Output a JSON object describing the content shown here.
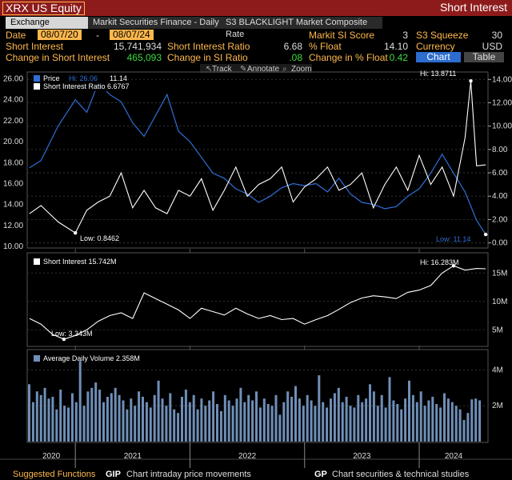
{
  "header": {
    "ticker": "XRX US Equity",
    "function_name": "Short Interest"
  },
  "tabs": [
    {
      "label": "Exchange Reported",
      "active": true
    },
    {
      "label": "Markit Securities Finance - Daily",
      "active": false
    },
    {
      "label": "S3 BLACKLIGHT Market Composite Rate",
      "active": false
    }
  ],
  "fields": {
    "date_label": "Date",
    "date_start": "08/07/20",
    "date_sep": "-",
    "date_end": "08/07/24",
    "markit_si_score_label": "Markit SI Score",
    "markit_si_score": "3",
    "s3_squeeze_label": "S3 Squeeze",
    "s3_squeeze": "30",
    "short_interest_label": "Short Interest",
    "short_interest": "15,741,934",
    "si_ratio_label": "Short Interest Ratio",
    "si_ratio": "6.68",
    "pct_float_label": "% Float",
    "pct_float": "14.10",
    "currency_label": "Currency",
    "currency": "USD",
    "chg_si_label": "Change in Short Interest",
    "chg_si": "465,093",
    "chg_si_ratio_label": "Change in SI Ratio",
    "chg_si_ratio": ".08",
    "chg_pct_float_label": "Change in % Float",
    "chg_pct_float": "0.42",
    "chart_button": "Chart",
    "table_button": "Table"
  },
  "toolbar": {
    "track": "Track",
    "annotate": "Annotate",
    "zoom": "Zoom"
  },
  "colors": {
    "price": "#2f6fd6",
    "si_ratio": "#ffffff",
    "volume": "#6f8fb8",
    "accent": "#ffb84d",
    "header_red": "#8e1b1b"
  },
  "chart_data": [
    {
      "type": "line",
      "legend": [
        "Price",
        "Short Interest Ratio 6.6767"
      ],
      "legend_price_hi": "Hi: 26.06",
      "legend_price_last": "11.14",
      "annotations": {
        "ratio_hi": "Hi: 13.8711",
        "ratio_low": "Low: 0.8462",
        "price_low": "Low: 11.14"
      },
      "x_labels": [
        "2020",
        "2021",
        "2022",
        "2023",
        "2024"
      ],
      "x_range": [
        2020.58,
        2024.6
      ],
      "left_axis": {
        "ylim": [
          10,
          26.5
        ],
        "ticks": [
          "10.00",
          "12.00",
          "14.00",
          "16.00",
          "18.00",
          "20.00",
          "22.00",
          "24.00",
          "26.00"
        ]
      },
      "right_axis": {
        "ylim": [
          -0.3,
          14.5
        ],
        "ticks": [
          "0.00",
          "2.00",
          "4.00",
          "6.00",
          "8.00",
          "10.00",
          "12.00",
          "14.00"
        ]
      },
      "series": [
        {
          "name": "Price",
          "axis": "left",
          "x": [
            2020.6,
            2020.7,
            2020.85,
            2021.0,
            2021.1,
            2021.2,
            2021.3,
            2021.4,
            2021.5,
            2021.6,
            2021.7,
            2021.8,
            2021.9,
            2022.0,
            2022.1,
            2022.2,
            2022.3,
            2022.4,
            2022.5,
            2022.6,
            2022.7,
            2022.8,
            2022.9,
            2023.0,
            2023.1,
            2023.2,
            2023.3,
            2023.4,
            2023.5,
            2023.6,
            2023.7,
            2023.8,
            2023.9,
            2024.0,
            2024.1,
            2024.2,
            2024.3,
            2024.4,
            2024.5,
            2024.58
          ],
          "values": [
            17.5,
            18.2,
            21.5,
            24.0,
            22.8,
            25.6,
            24.5,
            23.8,
            21.8,
            20.5,
            22.5,
            24.5,
            21.0,
            20.0,
            18.5,
            17.0,
            16.5,
            15.5,
            15.0,
            14.2,
            14.8,
            15.6,
            16.0,
            15.8,
            16.0,
            15.2,
            16.5,
            15.0,
            14.2,
            14.0,
            13.6,
            13.8,
            14.8,
            15.5,
            17.0,
            18.8,
            17.0,
            15.2,
            12.5,
            11.14
          ]
        },
        {
          "name": "Short Interest Ratio",
          "axis": "right",
          "x": [
            2020.6,
            2020.7,
            2020.85,
            2021.0,
            2021.1,
            2021.2,
            2021.3,
            2021.4,
            2021.5,
            2021.6,
            2021.7,
            2021.8,
            2021.9,
            2022.0,
            2022.1,
            2022.2,
            2022.3,
            2022.4,
            2022.5,
            2022.6,
            2022.7,
            2022.8,
            2022.9,
            2023.0,
            2023.1,
            2023.2,
            2023.3,
            2023.4,
            2023.5,
            2023.6,
            2023.7,
            2023.8,
            2023.9,
            2024.0,
            2024.1,
            2024.2,
            2024.3,
            2024.4,
            2024.45,
            2024.5,
            2024.58
          ],
          "values": [
            2.5,
            3.2,
            1.8,
            0.85,
            2.8,
            3.5,
            4.0,
            6.0,
            3.0,
            4.5,
            3.0,
            2.5,
            4.5,
            4.0,
            5.5,
            2.8,
            4.5,
            6.5,
            4.0,
            5.0,
            5.5,
            6.5,
            3.5,
            4.8,
            5.5,
            6.5,
            4.5,
            5.0,
            6.0,
            3.0,
            5.0,
            6.5,
            4.5,
            7.5,
            5.0,
            6.5,
            4.0,
            9.0,
            13.87,
            6.6,
            6.68
          ]
        }
      ]
    },
    {
      "type": "line",
      "legend": [
        "Short Interest 15.742M"
      ],
      "annotations": {
        "hi": "Hi: 16.283M",
        "low": "Low: 3.343M"
      },
      "ylim": [
        2.5,
        18
      ],
      "y_ticks": [
        "5M",
        "10M",
        "15M"
      ],
      "series": [
        {
          "name": "Short Interest",
          "x": [
            2020.6,
            2020.7,
            2020.8,
            2020.9,
            2021.0,
            2021.1,
            2021.2,
            2021.3,
            2021.4,
            2021.5,
            2021.6,
            2021.7,
            2021.8,
            2021.9,
            2022.0,
            2022.1,
            2022.2,
            2022.3,
            2022.4,
            2022.5,
            2022.6,
            2022.7,
            2022.8,
            2022.9,
            2023.0,
            2023.1,
            2023.2,
            2023.3,
            2023.4,
            2023.5,
            2023.6,
            2023.7,
            2023.8,
            2023.9,
            2024.0,
            2024.1,
            2024.2,
            2024.3,
            2024.4,
            2024.5,
            2024.58
          ],
          "values": [
            7.0,
            6.0,
            4.2,
            3.343,
            4.0,
            5.0,
            6.5,
            7.5,
            8.0,
            7.0,
            11.5,
            10.5,
            9.5,
            8.5,
            7.0,
            8.8,
            8.2,
            7.6,
            8.8,
            7.8,
            7.0,
            7.5,
            6.8,
            7.0,
            6.0,
            6.8,
            7.5,
            8.6,
            9.8,
            10.6,
            11.0,
            10.8,
            10.5,
            11.6,
            12.0,
            12.8,
            15.0,
            16.283,
            15.5,
            15.8,
            15.742
          ]
        }
      ]
    },
    {
      "type": "bar",
      "legend": [
        "Average Daily Volume 2.358M"
      ],
      "ylim": [
        0,
        5
      ],
      "y_ticks": [
        "2M",
        "4M"
      ],
      "series": [
        {
          "name": "Average Daily Volume",
          "values": [
            3.2,
            2.2,
            2.8,
            2.6,
            3.0,
            2.4,
            2.5,
            1.8,
            2.9,
            2.0,
            1.9,
            2.7,
            2.2,
            4.5,
            2.0,
            2.8,
            3.0,
            3.3,
            2.9,
            2.2,
            2.5,
            2.7,
            3.0,
            2.6,
            2.3,
            1.8,
            2.4,
            2.0,
            2.8,
            2.5,
            2.2,
            1.9,
            2.6,
            3.4,
            2.4,
            2.0,
            2.7,
            1.8,
            1.6,
            2.5,
            2.9,
            2.2,
            2.6,
            1.8,
            2.4,
            2.0,
            2.3,
            2.8,
            2.1,
            1.7,
            2.6,
            2.3,
            2.0,
            2.4,
            3.0,
            2.2,
            2.6,
            2.3,
            2.8,
            1.9,
            2.4,
            2.1,
            2.0,
            2.6,
            1.5,
            2.2,
            2.8,
            2.5,
            3.1,
            2.4,
            2.0,
            2.6,
            2.3,
            2.0,
            3.7,
            2.2,
            1.9,
            2.4,
            2.7,
            3.0,
            2.2,
            2.5,
            2.0,
            1.9,
            2.6,
            2.2,
            2.4,
            3.2,
            2.8,
            2.0,
            2.6,
            1.9,
            3.6,
            2.3,
            2.1,
            1.8,
            2.4,
            3.4,
            2.6,
            2.2,
            2.8,
            2.0,
            2.3,
            2.5,
            2.1,
            1.9,
            2.7,
            2.4,
            2.2,
            2.0,
            1.8,
            1.2,
            1.6,
            2.358,
            2.4,
            2.3
          ]
        }
      ]
    }
  ],
  "footer": {
    "label": "Suggested Functions",
    "items": [
      {
        "code": "GIP",
        "desc": "Chart intraday price movements"
      },
      {
        "code": "GP",
        "desc": "Chart securities & technical studies"
      }
    ]
  }
}
